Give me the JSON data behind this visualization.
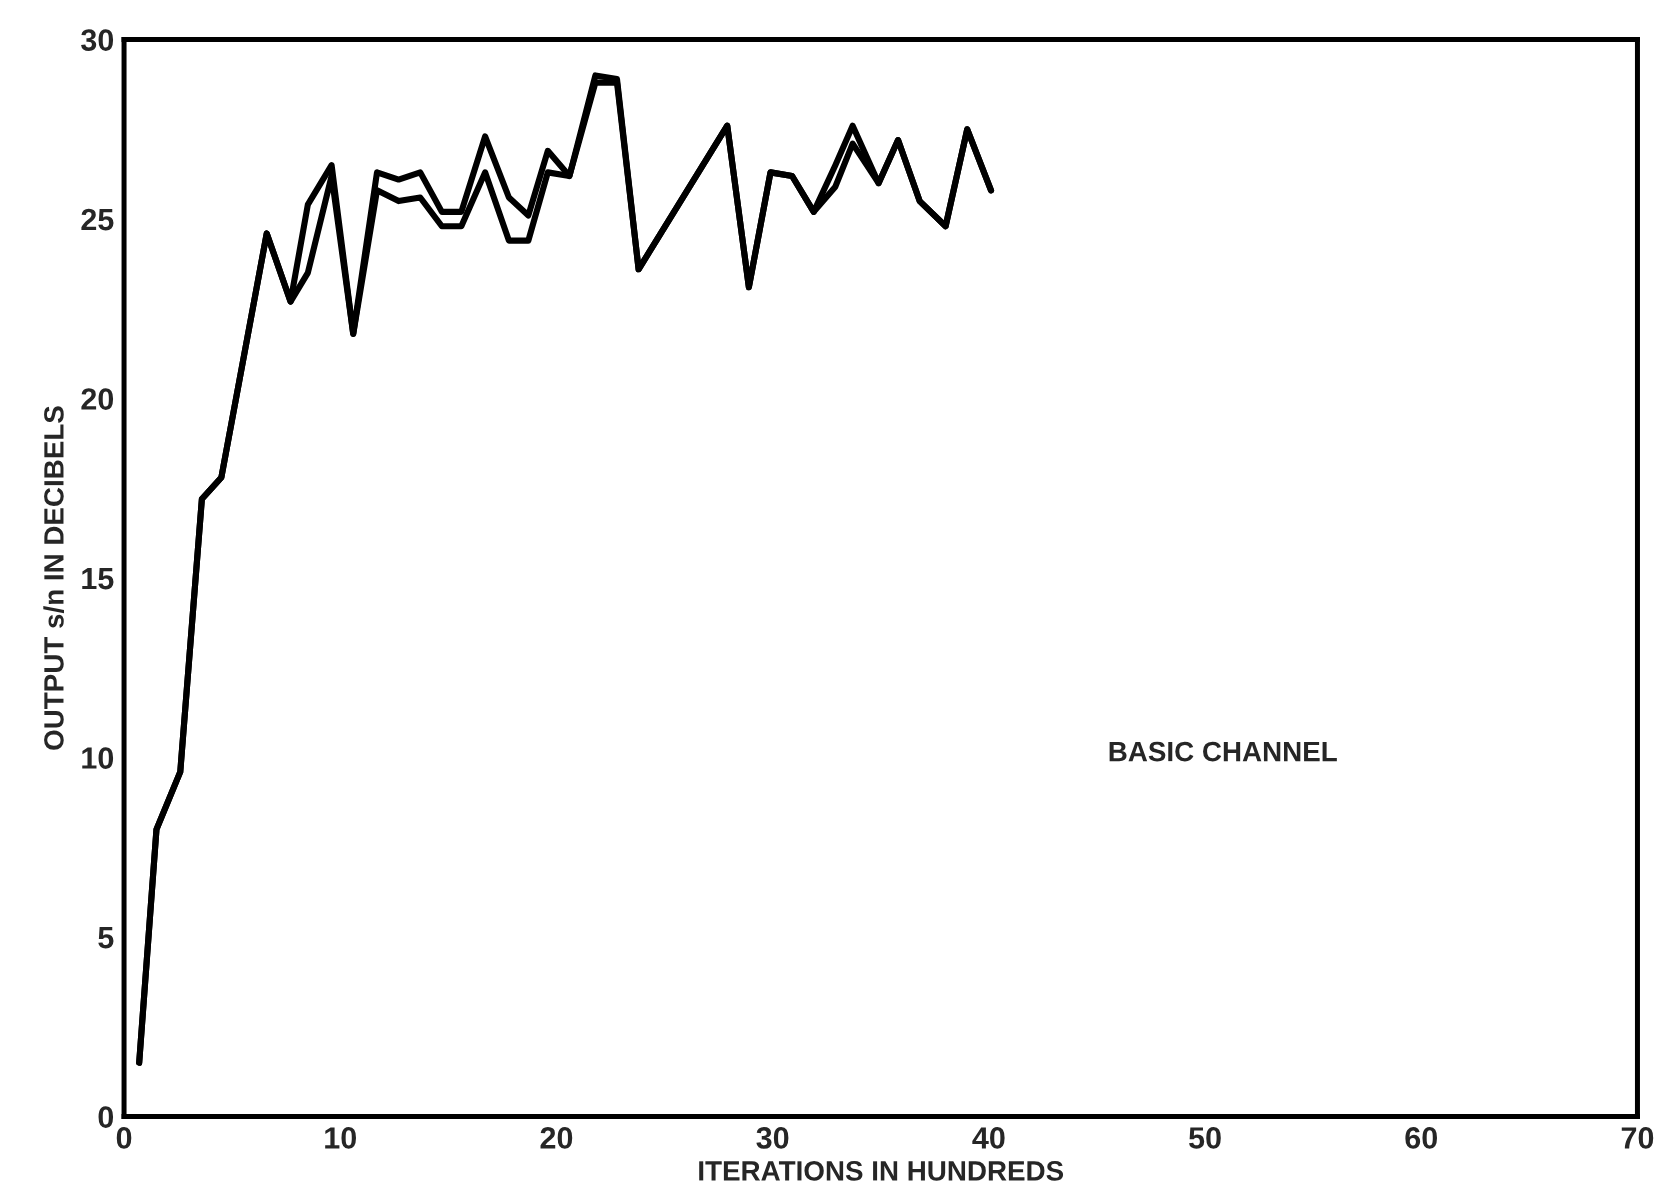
{
  "chart_data": {
    "type": "line",
    "xlabel": "ITERATIONS IN HUNDREDS",
    "ylabel": "OUTPUT s/n IN DECIBELS",
    "annotations": [
      "BASIC CHANNEL"
    ],
    "xlim": [
      0,
      70
    ],
    "ylim": [
      0,
      30
    ],
    "xticks": [
      0,
      10,
      20,
      30,
      40,
      50,
      60,
      70
    ],
    "yticks": [
      0,
      5,
      10,
      15,
      20,
      25,
      30
    ],
    "grid": false,
    "legend": false,
    "marker": "none",
    "line_style": "solid",
    "series": [
      {
        "color": "#000000",
        "x": [
          0.7,
          1.5,
          2.6,
          3.6,
          4.5,
          6.6,
          7.7,
          8.5,
          9.6,
          10.6,
          11.7,
          12.7,
          13.7,
          14.7,
          15.6,
          16.7,
          17.8,
          18.7,
          19.6,
          20.6,
          21.8,
          22.8,
          23.8,
          27.9,
          28.9,
          29.9,
          30.9,
          31.9,
          32.9,
          33.7,
          34.9,
          35.8,
          36.8,
          38.0,
          39.0,
          40.1
        ],
        "values": [
          1.5,
          8.0,
          9.6,
          17.2,
          17.8,
          24.6,
          22.7,
          25.4,
          26.5,
          21.8,
          26.3,
          26.1,
          26.3,
          25.2,
          25.2,
          27.3,
          25.6,
          25.1,
          26.9,
          26.2,
          29.0,
          28.9,
          23.6,
          27.6,
          23.1,
          26.3,
          26.2,
          25.2,
          26.5,
          27.6,
          26.0,
          27.2,
          25.5,
          24.8,
          27.5,
          25.8
        ]
      },
      {
        "color": "#000000",
        "x": [
          0.7,
          1.5,
          2.6,
          3.6,
          4.5,
          6.6,
          7.7,
          8.5,
          9.6,
          10.6,
          11.7,
          12.7,
          13.7,
          14.7,
          15.6,
          16.7,
          17.8,
          18.7,
          19.6,
          20.6,
          21.8,
          22.8,
          23.8,
          27.9,
          28.9,
          29.9,
          30.9,
          31.9,
          32.9,
          33.7,
          34.9,
          35.8,
          36.8,
          38.0,
          39.0,
          40.1
        ],
        "values": [
          1.5,
          8.0,
          9.6,
          17.2,
          17.8,
          24.6,
          22.7,
          23.5,
          26.2,
          21.8,
          25.8,
          25.5,
          25.6,
          24.8,
          24.8,
          26.3,
          24.4,
          24.4,
          26.3,
          26.2,
          28.8,
          28.8,
          23.6,
          27.6,
          23.1,
          26.3,
          26.2,
          25.2,
          25.9,
          27.1,
          26.0,
          27.2,
          25.5,
          24.8,
          27.5,
          25.8
        ]
      }
    ]
  }
}
